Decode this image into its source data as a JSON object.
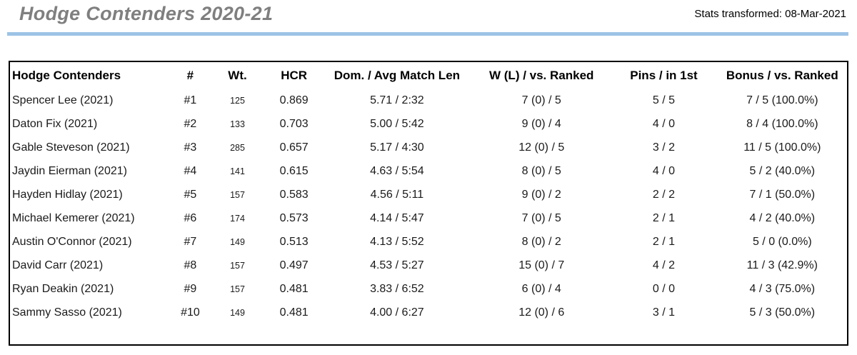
{
  "header": {
    "title": "Hodge Contenders 2020-21",
    "stats_note": "Stats transformed: 08-Mar-2021"
  },
  "colors": {
    "divider": "#9dc3e6",
    "title_text": "#7f7f7f",
    "table_border": "#000000"
  },
  "table": {
    "columns": [
      {
        "key": "name",
        "label": "Hodge Contenders"
      },
      {
        "key": "rank",
        "label": "#"
      },
      {
        "key": "wt",
        "label": "Wt."
      },
      {
        "key": "hcr",
        "label": "HCR"
      },
      {
        "key": "dom_avg",
        "label": "Dom. / Avg Match Len"
      },
      {
        "key": "w_l",
        "label": "W (L) / vs. Ranked"
      },
      {
        "key": "pins",
        "label": "Pins / in 1st"
      },
      {
        "key": "bonus",
        "label": "Bonus  / vs. Ranked"
      }
    ],
    "rows": [
      [
        "Spencer Lee (2021)",
        "#1",
        "125",
        "0.869",
        "5.71 / 2:32",
        "7 (0) / 5",
        "5 / 5",
        "7 / 5 (100.0%)"
      ],
      [
        "Daton Fix (2021)",
        "#2",
        "133",
        "0.703",
        "5.00 / 5:42",
        "9 (0) / 4",
        "4 / 0",
        "8 / 4 (100.0%)"
      ],
      [
        "Gable Steveson (2021)",
        "#3",
        "285",
        "0.657",
        "5.17 / 4:30",
        "12 (0) / 5",
        "3 / 2",
        "11 / 5 (100.0%)"
      ],
      [
        "Jaydin Eierman (2021)",
        "#4",
        "141",
        "0.615",
        "4.63 / 5:54",
        "8 (0) / 5",
        "4 / 0",
        "5 / 2 (40.0%)"
      ],
      [
        "Hayden Hidlay (2021)",
        "#5",
        "157",
        "0.583",
        "4.56 / 5:11",
        "9 (0) / 2",
        "2 / 2",
        "7 / 1 (50.0%)"
      ],
      [
        "Michael Kemerer (2021)",
        "#6",
        "174",
        "0.573",
        "4.14 / 5:47",
        "7 (0) / 5",
        "2 / 1",
        "4 / 2 (40.0%)"
      ],
      [
        "Austin O'Connor (2021)",
        "#7",
        "149",
        "0.513",
        "4.13 / 5:52",
        "8 (0) / 2",
        "2 / 1",
        "5 / 0 (0.0%)"
      ],
      [
        "David Carr (2021)",
        "#8",
        "157",
        "0.497",
        "4.53 / 5:27",
        "15 (0) / 7",
        "4 / 2",
        "11 / 3 (42.9%)"
      ],
      [
        "Ryan Deakin (2021)",
        "#9",
        "157",
        "0.481",
        "3.83 / 6:52",
        "6 (0) / 4",
        "0 / 0",
        "4 / 3 (75.0%)"
      ],
      [
        "Sammy Sasso (2021)",
        "#10",
        "149",
        "0.481",
        "4.00 / 6:27",
        "12 (0) / 6",
        "3 / 1",
        "5 / 3 (50.0%)"
      ]
    ]
  }
}
